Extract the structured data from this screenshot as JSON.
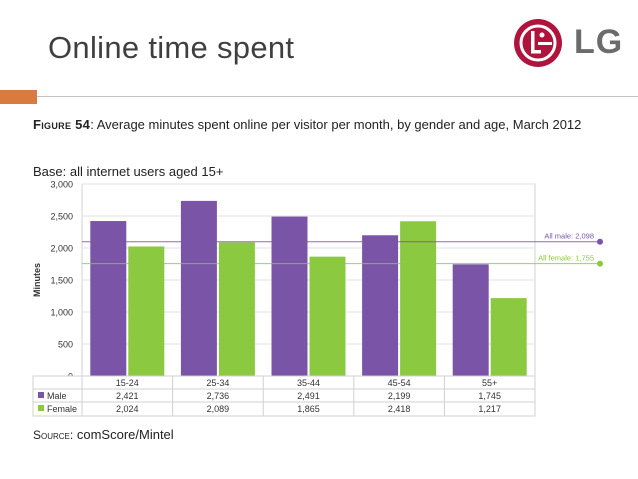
{
  "slide": {
    "title": "Online time spent",
    "logo_text": "LG",
    "figure_label": "Figure 54",
    "figure_caption": ": Average minutes spent online per visitor per month, by gender and age, March 2012",
    "base_text": "Base: all internet users aged 15+",
    "source_label": "Source:",
    "source_text": "comScore/Mintel"
  },
  "colors": {
    "male": "#7a54a6",
    "female": "#8bc940",
    "accent": "#d97a3f",
    "logo_red": "#b0143c"
  },
  "chart_data": {
    "type": "bar",
    "ylabel": "Minutes",
    "ylim": [
      0,
      3000
    ],
    "yticks": [
      "0",
      "500",
      "1,000",
      "1,500",
      "2,000",
      "2,500",
      "3,000"
    ],
    "categories": [
      "15-24",
      "25-34",
      "35-44",
      "45-54",
      "55+"
    ],
    "series": [
      {
        "name": "Male",
        "values": [
          2421,
          2736,
          2491,
          2199,
          1745
        ],
        "labels": [
          "2,421",
          "2,736",
          "2,491",
          "2,199",
          "1,745"
        ]
      },
      {
        "name": "Female",
        "values": [
          2024,
          2089,
          1865,
          2418,
          1217
        ],
        "labels": [
          "2,024",
          "2,089",
          "1,865",
          "2,418",
          "1,217"
        ]
      }
    ],
    "reference_lines": [
      {
        "label": "All male: 2,098",
        "value": 2098
      },
      {
        "label": "All female: 1,755",
        "value": 1755
      }
    ],
    "grid": true,
    "legend": "table-below"
  }
}
